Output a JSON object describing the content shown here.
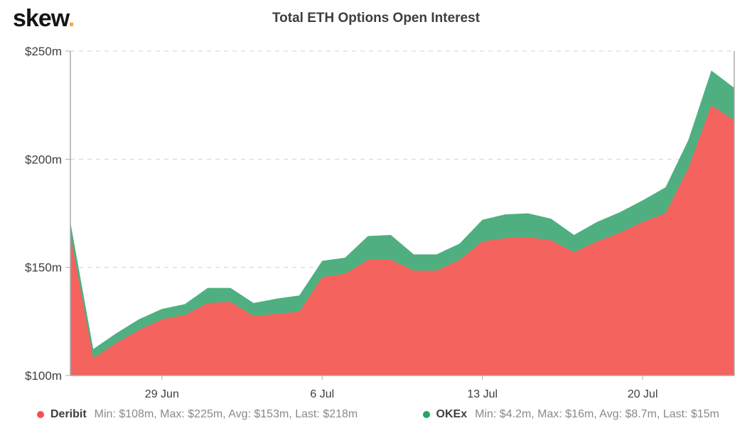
{
  "brand": {
    "name": "skew",
    "dot": ".",
    "dot_color": "#F2A93B",
    "text_color": "#151515"
  },
  "header": {
    "title": "Total ETH Options Open Interest"
  },
  "chart_data": {
    "type": "area",
    "stacked": true,
    "title": "Total ETH Options Open Interest",
    "xlabel": "",
    "ylabel": "",
    "y_unit": "$m",
    "ylim": [
      100,
      250
    ],
    "grid": "horizontal-dashed",
    "legend_position": "bottom",
    "categories": [
      "25 Jun",
      "26 Jun",
      "27 Jun",
      "28 Jun",
      "29 Jun",
      "30 Jun",
      "1 Jul",
      "2 Jul",
      "3 Jul",
      "4 Jul",
      "5 Jul",
      "6 Jul",
      "7 Jul",
      "8 Jul",
      "9 Jul",
      "10 Jul",
      "11 Jul",
      "12 Jul",
      "13 Jul",
      "14 Jul",
      "15 Jul",
      "16 Jul",
      "17 Jul",
      "18 Jul",
      "19 Jul",
      "20 Jul",
      "21 Jul",
      "22 Jul",
      "23 Jul",
      "24 Jul"
    ],
    "xticks": [
      "29 Jun",
      "6 Jul",
      "13 Jul",
      "20 Jul"
    ],
    "yticks": [
      {
        "value": 250,
        "label": "$250m"
      },
      {
        "value": 200,
        "label": "$200m"
      },
      {
        "value": 150,
        "label": "$150m"
      },
      {
        "value": 100,
        "label": "$100m"
      }
    ],
    "series": [
      {
        "name": "Deribit",
        "color": "#F4635D",
        "values": [
          165,
          108,
          115,
          121,
          126,
          128,
          133.5,
          134,
          127.5,
          128.5,
          129.5,
          145.5,
          147,
          153.5,
          153.5,
          148.5,
          148.5,
          153.5,
          162,
          163.5,
          164,
          162.5,
          157,
          162,
          166,
          171,
          175,
          196,
          225,
          218
        ]
      },
      {
        "name": "OKEx",
        "color": "#4FAF80",
        "values": [
          6,
          4.2,
          4.5,
          5,
          4.8,
          5,
          7,
          6.5,
          6,
          7,
          7.5,
          7.5,
          7.5,
          11,
          11.5,
          7.5,
          7.5,
          7.5,
          10,
          11,
          11,
          10,
          8,
          9,
          9.5,
          10,
          12,
          13,
          16,
          15
        ]
      }
    ]
  },
  "legend": {
    "items": [
      {
        "name": "Deribit",
        "stats": "Min: $108m, Max: $225m, Avg: $153m, Last: $218m",
        "color": "#F25050"
      },
      {
        "name": "OKEx",
        "stats": "Min: $4.2m, Max: $16m, Avg: $8.7m, Last: $15m",
        "color": "#28A463"
      }
    ]
  },
  "axes": {
    "axis_color": "#ABABAB",
    "grid_color": "#DBDBDB",
    "label_color": "#3E3E3E"
  }
}
